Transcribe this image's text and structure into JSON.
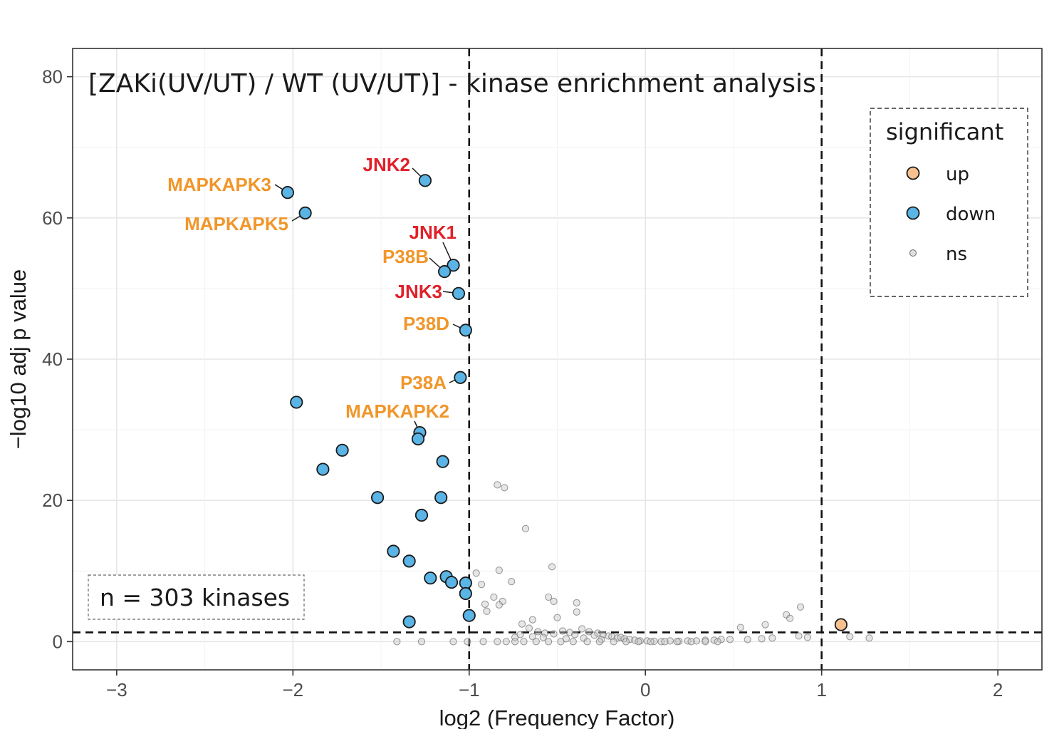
{
  "chart_data": {
    "type": "scatter",
    "title": "[ZAKi(UV/UT) / WT (UV/UT)] - kinase enrichment analysis",
    "xlabel": "log2 (Frequency Factor)",
    "ylabel": "−log10 adj p value",
    "xlim": [
      -3.25,
      2.25
    ],
    "ylim": [
      -4,
      84
    ],
    "x_ticks": [
      -3,
      -2,
      -1,
      0,
      1,
      2
    ],
    "x_tick_labels": [
      "−3",
      "−2",
      "−1",
      "0",
      "1",
      "2"
    ],
    "y_ticks": [
      0,
      20,
      40,
      60,
      80
    ],
    "y_tick_labels": [
      "0",
      "20",
      "40",
      "60",
      "80"
    ],
    "grid": true,
    "thresholds": {
      "x": [
        -1,
        1
      ],
      "y": 1.3
    },
    "colors": {
      "up": "#f8c08e",
      "down": "#5ab4e5",
      "ns": "#c8c8c8",
      "label_orange": "#f0962a",
      "label_red": "#e0202a"
    },
    "legend": {
      "title": "significant",
      "position": "top-right",
      "items": [
        {
          "key": "up",
          "label": "up"
        },
        {
          "key": "down",
          "label": "down"
        },
        {
          "key": "ns",
          "label": "ns"
        }
      ]
    },
    "annotation": "n = 303 kinases",
    "series": [
      {
        "name": "up",
        "points": [
          [
            1.11,
            2.4
          ]
        ]
      },
      {
        "name": "down",
        "points": [
          [
            -1.25,
            65.3
          ],
          [
            -2.03,
            63.6
          ],
          [
            -1.93,
            60.7
          ],
          [
            -1.09,
            53.3
          ],
          [
            -1.14,
            52.4
          ],
          [
            -1.06,
            49.3
          ],
          [
            -1.02,
            44.1
          ],
          [
            -1.05,
            37.4
          ],
          [
            -1.98,
            33.9
          ],
          [
            -1.28,
            29.6
          ],
          [
            -1.29,
            28.7
          ],
          [
            -1.72,
            27.1
          ],
          [
            -1.15,
            25.5
          ],
          [
            -1.83,
            24.4
          ],
          [
            -1.52,
            20.4
          ],
          [
            -1.16,
            20.4
          ],
          [
            -1.27,
            17.9
          ],
          [
            -1.43,
            12.8
          ],
          [
            -1.34,
            11.4
          ],
          [
            -1.13,
            9.2
          ],
          [
            -1.22,
            9.0
          ],
          [
            -1.1,
            8.4
          ],
          [
            -1.02,
            8.3
          ],
          [
            -1.02,
            6.8
          ],
          [
            -1.0,
            3.7
          ],
          [
            -1.34,
            2.8
          ]
        ]
      },
      {
        "name": "ns",
        "points": [
          [
            -0.84,
            22.2
          ],
          [
            -0.8,
            21.8
          ],
          [
            -0.68,
            16.0
          ],
          [
            -0.96,
            9.7
          ],
          [
            -0.83,
            10.1
          ],
          [
            -0.53,
            10.6
          ],
          [
            -0.93,
            8.1
          ],
          [
            -0.76,
            8.5
          ],
          [
            -0.86,
            6.3
          ],
          [
            -0.81,
            5.7
          ],
          [
            -0.83,
            5.2
          ],
          [
            -0.91,
            5.3
          ],
          [
            -0.9,
            4.3
          ],
          [
            -0.55,
            6.3
          ],
          [
            -0.39,
            5.5
          ],
          [
            -0.52,
            5.7
          ],
          [
            -0.39,
            4.2
          ],
          [
            -0.5,
            3.4
          ],
          [
            -0.64,
            3.1
          ],
          [
            0.88,
            4.9
          ],
          [
            0.8,
            3.8
          ],
          [
            0.82,
            3.3
          ],
          [
            0.68,
            2.4
          ],
          [
            0.54,
            2.0
          ],
          [
            1.16,
            0.7
          ],
          [
            1.27,
            0.5
          ],
          [
            -1.41,
            0.0
          ],
          [
            -1.27,
            0.0
          ],
          [
            -1.09,
            0.0
          ],
          [
            -1.01,
            0.0
          ],
          [
            -0.92,
            0.0
          ],
          [
            0.87,
            0.8
          ],
          [
            0.92,
            0.6
          ],
          [
            0.72,
            0.5
          ],
          [
            0.66,
            0.4
          ],
          [
            0.58,
            0.3
          ],
          [
            -0.7,
            2.5
          ],
          [
            -0.66,
            1.9
          ],
          [
            -0.61,
            1.4
          ],
          [
            -0.57,
            1.2
          ],
          [
            -0.52,
            1.1
          ],
          [
            -0.47,
            1.5
          ],
          [
            -0.43,
            1.3
          ],
          [
            -0.4,
            1.0
          ],
          [
            -0.36,
            1.8
          ],
          [
            -0.32,
            1.4
          ],
          [
            -0.29,
            0.9
          ],
          [
            -0.27,
            1.2
          ],
          [
            -0.24,
            1.0
          ],
          [
            -0.21,
            0.8
          ],
          [
            -0.19,
            0.7
          ],
          [
            -0.16,
            0.5
          ],
          [
            -0.14,
            0.6
          ],
          [
            -0.12,
            0.4
          ],
          [
            -0.09,
            0.3
          ],
          [
            -0.06,
            0.2
          ],
          [
            -0.03,
            0.1
          ],
          [
            0.01,
            0.1
          ],
          [
            0.05,
            0.05
          ],
          [
            0.09,
            0.0
          ],
          [
            0.14,
            0.1
          ],
          [
            0.19,
            0.05
          ],
          [
            0.24,
            0.1
          ],
          [
            0.29,
            0.1
          ],
          [
            0.34,
            0.2
          ],
          [
            0.39,
            0.2
          ],
          [
            0.43,
            0.3
          ],
          [
            0.48,
            0.3
          ],
          [
            -0.74,
            0.6
          ],
          [
            -0.71,
            1.0
          ],
          [
            -0.64,
            0.7
          ],
          [
            -0.58,
            0.6
          ],
          [
            -0.45,
            0.4
          ],
          [
            -0.35,
            0.5
          ],
          [
            -0.25,
            0.3
          ],
          [
            -0.84,
            0.0
          ],
          [
            -0.79,
            0.0
          ],
          [
            -0.74,
            0.0
          ],
          [
            -0.69,
            0.0
          ],
          [
            -0.62,
            0.0
          ],
          [
            -0.55,
            0.0
          ],
          [
            -0.48,
            0.0
          ],
          [
            -0.41,
            0.0
          ],
          [
            -0.33,
            0.0
          ],
          [
            -0.26,
            0.0
          ],
          [
            -0.18,
            0.0
          ],
          [
            -0.11,
            0.0
          ],
          [
            -0.04,
            0.0
          ],
          [
            0.03,
            0.0
          ],
          [
            0.11,
            0.0
          ],
          [
            0.18,
            0.0
          ],
          [
            0.26,
            0.0
          ],
          [
            0.34,
            0.0
          ],
          [
            0.41,
            0.0
          ]
        ]
      }
    ],
    "labels": [
      {
        "text": "JNK2",
        "x": -1.25,
        "y": 65.3,
        "color": "red"
      },
      {
        "text": "MAPKAPK3",
        "x": -2.03,
        "y": 63.6,
        "color": "orange"
      },
      {
        "text": "MAPKAPK5",
        "x": -1.93,
        "y": 60.7,
        "color": "orange"
      },
      {
        "text": "JNK1",
        "x": -1.09,
        "y": 53.3,
        "color": "red"
      },
      {
        "text": "P38B",
        "x": -1.14,
        "y": 52.4,
        "color": "orange"
      },
      {
        "text": "JNK3",
        "x": -1.06,
        "y": 49.3,
        "color": "red"
      },
      {
        "text": "P38D",
        "x": -1.02,
        "y": 44.1,
        "color": "orange"
      },
      {
        "text": "P38A",
        "x": -1.05,
        "y": 37.4,
        "color": "orange"
      },
      {
        "text": "MAPKAPK2",
        "x": -1.28,
        "y": 29.6,
        "color": "orange"
      }
    ]
  }
}
